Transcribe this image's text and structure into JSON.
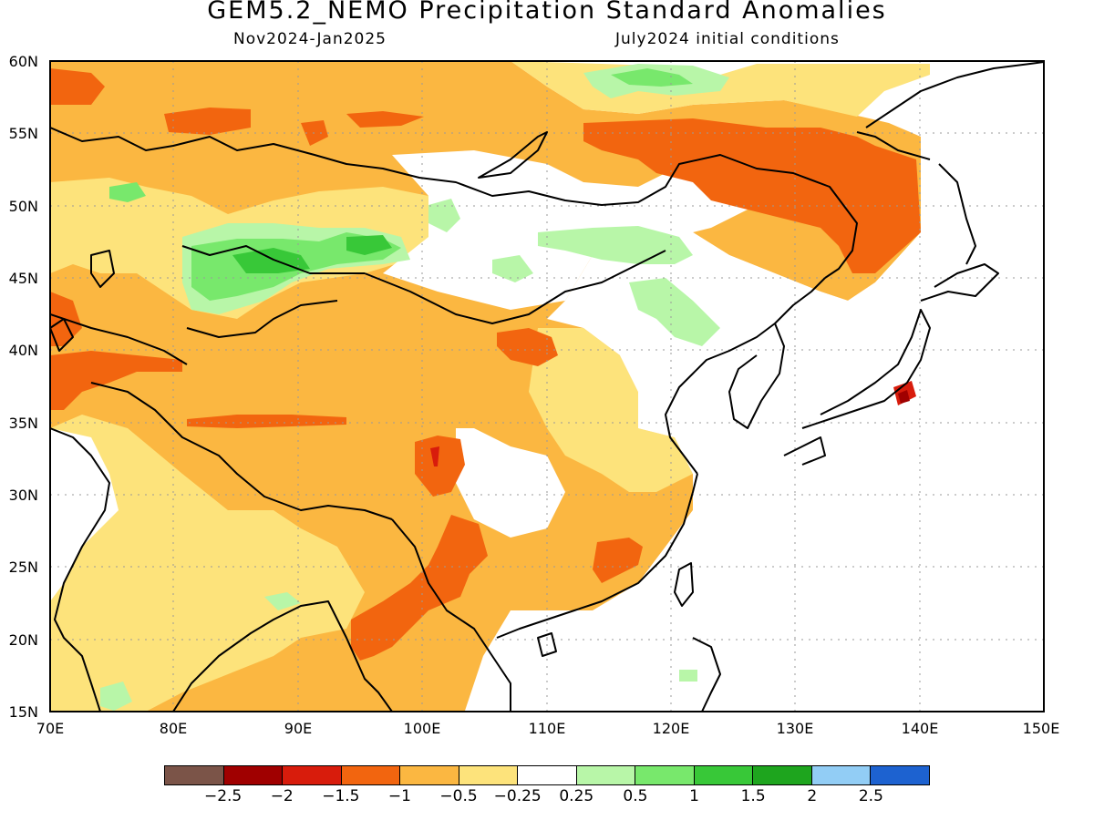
{
  "title": "GEM5.2_NEMO Precipitation Standard Anomalies",
  "subtitle_left": "Nov2024-Jan2025",
  "subtitle_right": "July2024 initial conditions",
  "lat_labels": [
    "60N",
    "55N",
    "50N",
    "45N",
    "40N",
    "35N",
    "30N",
    "25N",
    "20N",
    "15N"
  ],
  "lon_labels": [
    "70E",
    "80E",
    "90E",
    "100E",
    "110E",
    "120E",
    "130E",
    "140E",
    "150E"
  ],
  "legend": {
    "colors": [
      "#7b5448",
      "#a00000",
      "#d81c0c",
      "#f2650f",
      "#fbb741",
      "#fde37b",
      "#ffffff",
      "#b8f6a8",
      "#78e86c",
      "#38c838",
      "#1ea51e",
      "#92cdf5",
      "#1d62d0"
    ],
    "tick_labels": [
      "-2.5",
      "-2",
      "-1.5",
      "-1",
      "-0.5",
      "-0.25",
      "0.25",
      "0.5",
      "1",
      "1.5",
      "2",
      "2.5"
    ]
  },
  "map_colors": {
    "neg_strong": "#f2650f",
    "neg_dark": "#d81c0c",
    "neg_mid": "#fbb741",
    "neg_light": "#fde37b",
    "pos_light": "#b8f6a8",
    "pos_mid": "#78e86c",
    "pos_strong": "#38c838"
  }
}
